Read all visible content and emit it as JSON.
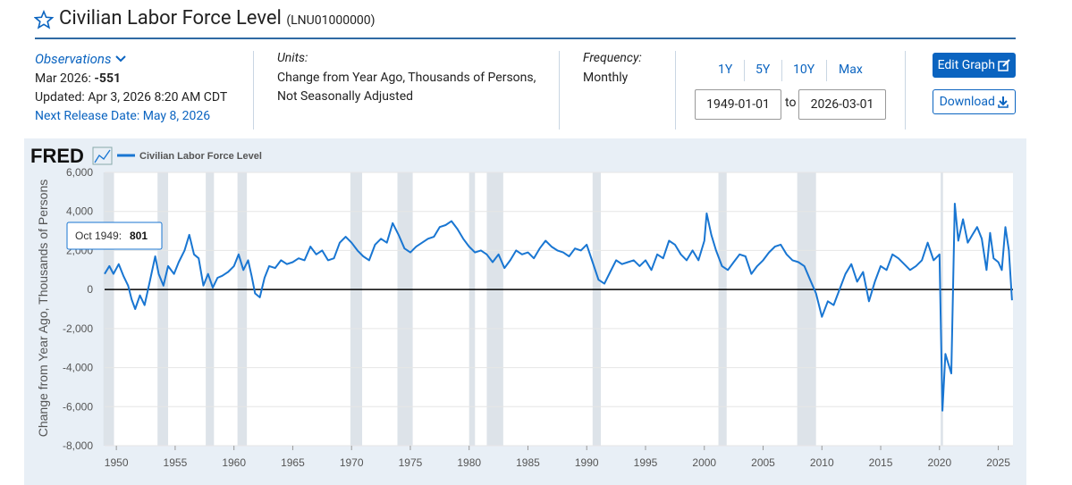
{
  "header": {
    "title": "Civilian Labor Force Level",
    "series_id": "(LNU01000000)"
  },
  "observations": {
    "heading": "Observations",
    "latest_label": "Mar 2026:",
    "latest_value": "-551",
    "updated": "Updated: Apr 3, 2026 8:20 AM CDT",
    "next_release": "Next Release Date: May 8, 2026"
  },
  "units": {
    "heading": "Units:",
    "lines": [
      "Change from Year Ago, Thousands of Persons,",
      "Not Seasonally Adjusted"
    ]
  },
  "frequency": {
    "heading": "Frequency:",
    "value": "Monthly"
  },
  "range": {
    "buttons": [
      "1Y",
      "5Y",
      "10Y",
      "Max"
    ],
    "start": "1949-01-01",
    "separator": "to",
    "end": "2026-03-01"
  },
  "actions": {
    "edit": "Edit Graph",
    "download": "Download"
  },
  "chart_data": {
    "type": "line",
    "brand": "FRED",
    "ylabel": "Change from Year Ago, Thousands of Persons",
    "x": [
      1949.0,
      1949.4,
      1949.75,
      1950.2,
      1950.6,
      1951.0,
      1951.3,
      1951.6,
      1952.0,
      1952.4,
      1952.8,
      1953.3,
      1953.6,
      1954.0,
      1954.4,
      1954.9,
      1955.3,
      1955.8,
      1956.2,
      1956.6,
      1957.0,
      1957.4,
      1957.8,
      1958.2,
      1958.6,
      1959.0,
      1959.5,
      1960.0,
      1960.4,
      1960.8,
      1961.2,
      1961.5,
      1961.8,
      1962.2,
      1962.6,
      1963.0,
      1963.5,
      1964.0,
      1964.5,
      1965.0,
      1965.5,
      1966.0,
      1966.5,
      1967.0,
      1967.5,
      1968.0,
      1968.5,
      1969.0,
      1969.5,
      1970.0,
      1970.5,
      1971.0,
      1971.5,
      1972.0,
      1972.5,
      1973.0,
      1973.5,
      1974.0,
      1974.5,
      1975.0,
      1975.5,
      1976.0,
      1976.5,
      1977.0,
      1977.5,
      1978.0,
      1978.5,
      1979.0,
      1979.5,
      1980.0,
      1980.5,
      1981.0,
      1981.5,
      1982.0,
      1982.5,
      1983.0,
      1983.5,
      1984.0,
      1984.5,
      1985.0,
      1985.5,
      1986.0,
      1986.5,
      1987.0,
      1987.5,
      1988.0,
      1988.5,
      1989.0,
      1989.5,
      1990.0,
      1990.5,
      1991.0,
      1991.5,
      1992.0,
      1992.5,
      1993.0,
      1993.5,
      1994.0,
      1994.5,
      1995.0,
      1995.5,
      1996.0,
      1996.5,
      1997.0,
      1997.5,
      1998.0,
      1998.5,
      1999.0,
      1999.5,
      2000.0,
      2000.2,
      2000.6,
      2001.0,
      2001.5,
      2002.0,
      2002.5,
      2003.0,
      2003.5,
      2004.0,
      2004.5,
      2005.0,
      2005.5,
      2006.0,
      2006.5,
      2007.0,
      2007.5,
      2008.0,
      2008.5,
      2009.0,
      2009.5,
      2010.0,
      2010.5,
      2011.0,
      2011.5,
      2012.0,
      2012.5,
      2013.0,
      2013.5,
      2014.0,
      2014.5,
      2015.0,
      2015.5,
      2016.0,
      2016.5,
      2017.0,
      2017.5,
      2018.0,
      2018.5,
      2019.0,
      2019.5,
      2020.0,
      2020.25,
      2020.5,
      2020.75,
      2021.0,
      2021.3,
      2021.6,
      2022.0,
      2022.4,
      2022.8,
      2023.2,
      2023.6,
      2024.0,
      2024.3,
      2024.6,
      2025.0,
      2025.3,
      2025.6,
      2025.9,
      2026.17
    ],
    "series": [
      {
        "name": "Civilian Labor Force Level",
        "color": "#1976d2",
        "values": [
          800,
          1200,
          801,
          1300,
          700,
          200,
          -500,
          -1000,
          -300,
          -800,
          300,
          1700,
          800,
          200,
          1200,
          800,
          1400,
          2000,
          2800,
          1800,
          1600,
          200,
          800,
          100,
          600,
          700,
          900,
          1200,
          1800,
          1000,
          1500,
          700,
          -200,
          -400,
          600,
          1200,
          1100,
          1500,
          1300,
          1400,
          1600,
          1500,
          2200,
          1800,
          2000,
          1500,
          1600,
          2400,
          2700,
          2400,
          2000,
          1700,
          1500,
          2300,
          2600,
          2400,
          3400,
          2800,
          2100,
          1900,
          2200,
          2400,
          2600,
          2700,
          3200,
          3300,
          3500,
          3100,
          2600,
          2200,
          1900,
          2000,
          1800,
          1400,
          1800,
          1100,
          1500,
          2000,
          1800,
          1900,
          1600,
          2100,
          2500,
          2200,
          2000,
          1900,
          1700,
          2100,
          2000,
          2300,
          1400,
          500,
          300,
          900,
          1500,
          1300,
          1400,
          1500,
          1200,
          1500,
          1000,
          1800,
          1600,
          2500,
          2300,
          1800,
          1500,
          2000,
          1500,
          2500,
          3900,
          2800,
          2000,
          1200,
          1000,
          1400,
          1800,
          1700,
          800,
          1200,
          1500,
          1900,
          2200,
          2300,
          1800,
          1500,
          1400,
          1200,
          500,
          -200,
          -1400,
          -600,
          -800,
          0,
          800,
          1300,
          400,
          900,
          -600,
          400,
          1200,
          1000,
          1800,
          1600,
          1300,
          1000,
          1200,
          1500,
          2400,
          1500,
          1800,
          -6200,
          -3300,
          -3800,
          -4300,
          4400,
          2500,
          3600,
          2400,
          2800,
          3200,
          2600,
          1000,
          2900,
          1600,
          1400,
          1000,
          3200,
          2000,
          -551
        ]
      }
    ],
    "recessions": [
      [
        1948.9,
        1949.8
      ],
      [
        1953.5,
        1954.4
      ],
      [
        1957.6,
        1958.3
      ],
      [
        1960.3,
        1961.1
      ],
      [
        1969.9,
        1970.9
      ],
      [
        1973.9,
        1975.2
      ],
      [
        1980.0,
        1980.5
      ],
      [
        1981.5,
        1982.9
      ],
      [
        1990.5,
        1991.2
      ],
      [
        2001.2,
        2001.9
      ],
      [
        2007.9,
        2009.5
      ],
      [
        2020.1,
        2020.3
      ]
    ],
    "xlim": [
      1949,
      2026.25
    ],
    "xticks": [
      1950,
      1955,
      1960,
      1965,
      1970,
      1975,
      1980,
      1985,
      1990,
      1995,
      2000,
      2005,
      2010,
      2015,
      2020,
      2025
    ],
    "ylim": [
      -8000,
      6000
    ],
    "yticks": [
      {
        "value": 6000,
        "label": "6,000"
      },
      {
        "value": 4000,
        "label": "4,000"
      },
      {
        "value": 2000,
        "label": "2,000"
      },
      0,
      {
        "value": -2000,
        "label": "-2,000"
      },
      {
        "value": -4000,
        "label": "-4,000"
      },
      {
        "value": -6000,
        "label": "-6,000"
      },
      {
        "value": -8000,
        "label": "-8,000"
      }
    ],
    "grid": true,
    "tooltip": {
      "label": "Oct 1949:",
      "value": 801
    }
  }
}
